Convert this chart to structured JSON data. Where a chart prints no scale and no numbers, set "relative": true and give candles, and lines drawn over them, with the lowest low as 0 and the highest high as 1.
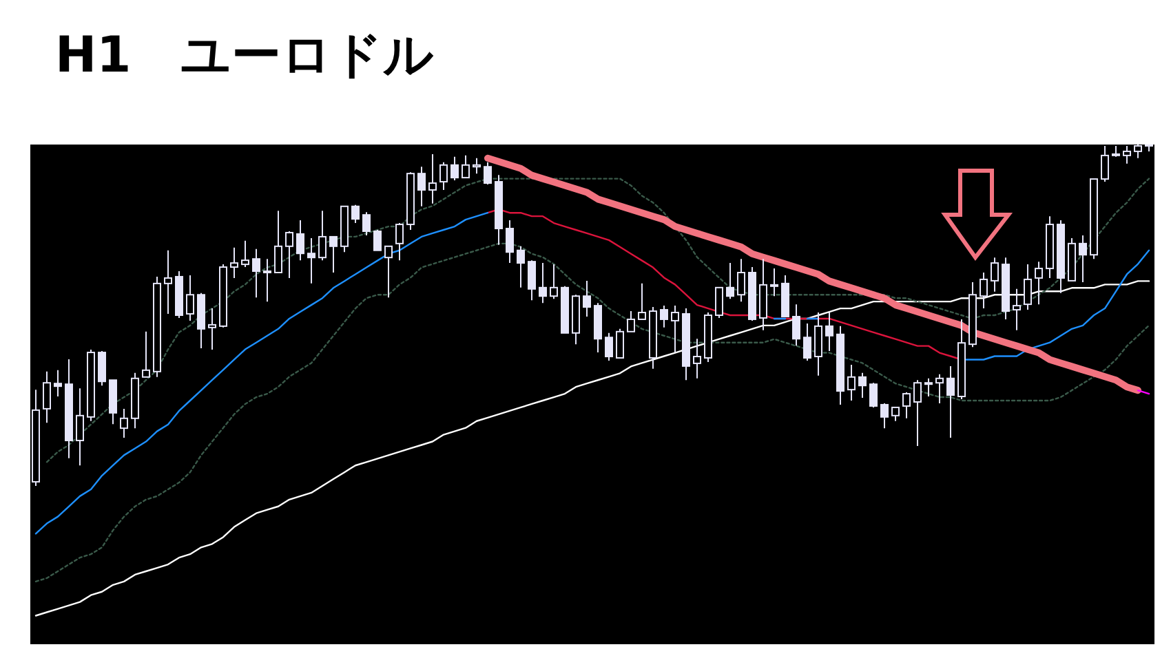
{
  "chart_data": {
    "type": "candlestick",
    "title": "H1　ユーロドル",
    "relative": true,
    "color": "#e6e6fa",
    "categories": [
      null,
      null,
      null,
      null,
      null,
      null,
      null,
      null,
      null,
      null,
      null,
      null,
      null,
      null,
      null,
      null,
      null,
      null,
      null,
      null,
      null,
      null,
      null,
      null,
      null,
      null,
      null,
      null,
      null,
      null,
      null,
      null,
      null,
      null,
      null,
      null,
      null,
      null,
      null,
      null,
      null,
      null,
      null,
      null,
      null,
      null,
      null,
      null,
      null,
      null,
      null,
      null,
      null,
      null,
      null,
      null,
      null,
      null,
      null,
      null,
      null,
      null,
      null,
      null,
      null,
      null,
      null,
      null,
      null,
      null,
      null,
      null,
      null,
      null,
      null,
      null,
      null,
      null,
      null,
      null,
      null,
      null,
      null,
      null,
      null,
      null,
      null,
      null,
      null,
      null,
      null,
      null,
      null,
      null,
      null,
      null,
      null,
      null,
      null,
      null,
      null,
      null
    ],
    "ohlc": [
      [
        0.012,
        0.282,
        0,
        0.222
      ],
      [
        0.226,
        0.335,
        0.185,
        0.302
      ],
      [
        0.3,
        0.339,
        0.262,
        0.292
      ],
      [
        0.298,
        0.371,
        0.081,
        0.133
      ],
      [
        0.133,
        0.286,
        0.06,
        0.206
      ],
      [
        0.202,
        0.399,
        0.19,
        0.391
      ],
      [
        0.391,
        0.395,
        0.294,
        0.306
      ],
      [
        0.31,
        0.31,
        0.181,
        0.214
      ],
      [
        0.169,
        0.226,
        0.141,
        0.198
      ],
      [
        0.198,
        0.331,
        0.169,
        0.315
      ],
      [
        0.319,
        0.452,
        0.319,
        0.339
      ],
      [
        0.335,
        0.613,
        0.319,
        0.593
      ],
      [
        0.593,
        0.69,
        0.504,
        0.609
      ],
      [
        0.613,
        0.629,
        0.492,
        0.5
      ],
      [
        0.504,
        0.617,
        0.484,
        0.56
      ],
      [
        0.56,
        0.565,
        0.403,
        0.46
      ],
      [
        0.464,
        0.52,
        0.399,
        0.472
      ],
      [
        0.468,
        0.649,
        0.464,
        0.641
      ],
      [
        0.641,
        0.698,
        0.609,
        0.653
      ],
      [
        0.649,
        0.718,
        0.641,
        0.661
      ],
      [
        0.665,
        0.694,
        0.552,
        0.629
      ],
      [
        0.629,
        0.665,
        0.54,
        0.625
      ],
      [
        0.625,
        0.806,
        0.625,
        0.702
      ],
      [
        0.702,
        0.746,
        0.609,
        0.742
      ],
      [
        0.738,
        0.778,
        0.661,
        0.681
      ],
      [
        0.681,
        0.726,
        0.593,
        0.669
      ],
      [
        0.669,
        0.806,
        0.661,
        0.73
      ],
      [
        0.73,
        0.73,
        0.625,
        0.702
      ],
      [
        0.702,
        0.819,
        0.685,
        0.819
      ],
      [
        0.819,
        0.823,
        0.77,
        0.782
      ],
      [
        0.794,
        0.802,
        0.734,
        0.746
      ],
      [
        0.746,
        0.75,
        0.69,
        0.69
      ],
      [
        0.669,
        0.702,
        0.552,
        0.702
      ],
      [
        0.71,
        0.77,
        0.661,
        0.766
      ],
      [
        0.766,
        0.919,
        0.75,
        0.915
      ],
      [
        0.915,
        0.935,
        0.819,
        0.867
      ],
      [
        0.867,
        0.972,
        0.827,
        0.887
      ],
      [
        0.891,
        0.948,
        0.867,
        0.94
      ],
      [
        0.94,
        0.964,
        0.895,
        0.903
      ],
      [
        0.903,
        0.968,
        0.903,
        0.94
      ],
      [
        0.935,
        0.96,
        0.915,
        0.94
      ],
      [
        0.935,
        0.948,
        0.883,
        0.887
      ],
      [
        0.891,
        0.911,
        0.706,
        0.754
      ],
      [
        0.754,
        0.778,
        0.653,
        0.685
      ],
      [
        0.69,
        0.702,
        0.581,
        0.653
      ],
      [
        0.657,
        0.661,
        0.544,
        0.577
      ],
      [
        0.581,
        0.653,
        0.536,
        0.556
      ],
      [
        0.556,
        0.649,
        0.548,
        0.581
      ],
      [
        0.581,
        0.585,
        0.448,
        0.448
      ],
      [
        0.448,
        0.56,
        0.415,
        0.556
      ],
      [
        0.556,
        0.601,
        0.496,
        0.524
      ],
      [
        0.528,
        0.536,
        0.391,
        0.431
      ],
      [
        0.435,
        0.448,
        0.367,
        0.379
      ],
      [
        0.375,
        0.46,
        0.375,
        0.452
      ],
      [
        0.452,
        0.512,
        0.452,
        0.488
      ],
      [
        0.488,
        0.593,
        0.488,
        0.508
      ],
      [
        0.375,
        0.524,
        0.343,
        0.512
      ],
      [
        0.516,
        0.528,
        0.464,
        0.488
      ],
      [
        0.484,
        0.528,
        0.391,
        0.508
      ],
      [
        0.504,
        0.52,
        0.31,
        0.351
      ],
      [
        0.359,
        0.431,
        0.315,
        0.379
      ],
      [
        0.375,
        0.508,
        0.363,
        0.5
      ],
      [
        0.5,
        0.581,
        0.492,
        0.581
      ],
      [
        0.581,
        0.653,
        0.548,
        0.556
      ],
      [
        0.56,
        0.665,
        0.54,
        0.625
      ],
      [
        0.625,
        0.641,
        0.484,
        0.488
      ],
      [
        0.492,
        0.665,
        0.456,
        0.589
      ],
      [
        0.589,
        0.637,
        0.556,
        0.587
      ],
      [
        0.593,
        0.617,
        0.496,
        0.496
      ],
      [
        0.496,
        0.532,
        0.411,
        0.431
      ],
      [
        0.435,
        0.476,
        0.367,
        0.375
      ],
      [
        0.379,
        0.508,
        0.323,
        0.468
      ],
      [
        0.468,
        0.508,
        0.395,
        0.44
      ],
      [
        0.444,
        0.468,
        0.238,
        0.278
      ],
      [
        0.282,
        0.355,
        0.25,
        0.319
      ],
      [
        0.319,
        0.331,
        0.258,
        0.294
      ],
      [
        0.298,
        0.302,
        0.23,
        0.234
      ],
      [
        0.238,
        0.242,
        0.169,
        0.202
      ],
      [
        0.206,
        0.23,
        0.19,
        0.23
      ],
      [
        0.234,
        0.274,
        0.198,
        0.27
      ],
      [
        0.246,
        0.31,
        0.117,
        0.302
      ],
      [
        0.298,
        0.315,
        0.262,
        0.302
      ],
      [
        0.302,
        0.327,
        0.242,
        0.315
      ],
      [
        0.315,
        0.351,
        0.141,
        0.266
      ],
      [
        0.262,
        0.488,
        0.254,
        0.419
      ],
      [
        0.415,
        0.597,
        0.407,
        0.56
      ],
      [
        0.556,
        0.625,
        0.52,
        0.605
      ],
      [
        0.601,
        0.669,
        0.569,
        0.653
      ],
      [
        0.649,
        0.669,
        0.488,
        0.512
      ],
      [
        0.516,
        0.577,
        0.456,
        0.528
      ],
      [
        0.532,
        0.649,
        0.516,
        0.605
      ],
      [
        0.609,
        0.657,
        0.532,
        0.637
      ],
      [
        0.637,
        0.79,
        0.609,
        0.766
      ],
      [
        0.766,
        0.778,
        0.565,
        0.609
      ],
      [
        0.601,
        0.726,
        0.601,
        0.71
      ],
      [
        0.71,
        0.734,
        0.597,
        0.677
      ],
      [
        0.677,
        0.899,
        0.665,
        0.899
      ],
      [
        0.899,
        0.996,
        0.891,
        0.968
      ],
      [
        0.972,
        0.996,
        0.964,
        0.968
      ],
      [
        0.968,
        0.996,
        0.944,
        0.98
      ],
      [
        0.98,
        1,
        0.96,
        0.996
      ],
      [
        0.996,
        1,
        0.98,
        1
      ]
    ],
    "series": [
      {
        "type": "line",
        "color": "#ffffff",
        "values": [
          -0.38,
          -0.37,
          -0.36,
          -0.35,
          -0.34,
          -0.32,
          -0.31,
          -0.29,
          -0.28,
          -0.26,
          -0.25,
          -0.24,
          -0.23,
          -0.21,
          -0.2,
          -0.18,
          -0.17,
          -0.15,
          -0.12,
          -0.1,
          -0.08,
          -0.07,
          -0.06,
          -0.04,
          -0.03,
          -0.02,
          0.0,
          0.02,
          0.04,
          0.06,
          0.07,
          0.08,
          0.09,
          0.1,
          0.11,
          0.12,
          0.13,
          0.15,
          0.16,
          0.17,
          0.19,
          0.2,
          0.21,
          0.22,
          0.23,
          0.24,
          0.25,
          0.26,
          0.27,
          0.29,
          0.3,
          0.31,
          0.32,
          0.33,
          0.35,
          0.36,
          0.37,
          0.38,
          0.39,
          0.4,
          0.41,
          0.42,
          0.43,
          0.44,
          0.45,
          0.46,
          0.47,
          0.47,
          0.48,
          0.49,
          0.49,
          0.5,
          0.51,
          0.52,
          0.52,
          0.53,
          0.54,
          0.54,
          0.54,
          0.54,
          0.54,
          0.54,
          0.54,
          0.54,
          0.55,
          0.55,
          0.55,
          0.56,
          0.56,
          0.56,
          0.56,
          0.57,
          0.57,
          0.57,
          0.58,
          0.58,
          0.58,
          0.59,
          0.59,
          0.59,
          0.6,
          0.6
        ]
      },
      {
        "type": "line",
        "color": "#1e90ff",
        "values": [
          -0.14,
          -0.11,
          -0.09,
          -0.06,
          -0.03,
          -0.01,
          0.03,
          0.06,
          0.09,
          0.11,
          0.13,
          0.16,
          0.18,
          0.22,
          0.25,
          0.28,
          0.31,
          0.34,
          0.37,
          0.4,
          0.42,
          0.44,
          0.46,
          0.49,
          0.51,
          0.53,
          0.55,
          0.58,
          0.6,
          0.62,
          0.64,
          0.66,
          0.68,
          0.69,
          0.71,
          0.73,
          0.74,
          0.75,
          0.76,
          0.78,
          0.79,
          0.8,
          null,
          null,
          null,
          null,
          null,
          null,
          null,
          null,
          null,
          null,
          null,
          null,
          null,
          null,
          null,
          null,
          null,
          null,
          null,
          null,
          null,
          null,
          null,
          null,
          null,
          0.49,
          0.49,
          null,
          0.49,
          0.49,
          null,
          null,
          null,
          null,
          null,
          null,
          null,
          null,
          null,
          null,
          null,
          null,
          0.37,
          0.37,
          0.37,
          0.38,
          0.38,
          0.38,
          0.4,
          0.41,
          0.42,
          0.44,
          0.46,
          0.47,
          0.5,
          0.52,
          0.57,
          0.62,
          0.65,
          0.69
        ]
      },
      {
        "type": "line",
        "color": "#dc143c",
        "values": [
          null,
          null,
          null,
          null,
          null,
          null,
          null,
          null,
          null,
          null,
          null,
          null,
          null,
          null,
          null,
          null,
          null,
          null,
          null,
          null,
          null,
          null,
          null,
          null,
          null,
          null,
          null,
          null,
          null,
          null,
          null,
          null,
          null,
          null,
          null,
          null,
          null,
          null,
          null,
          null,
          null,
          0.8,
          0.81,
          0.8,
          0.8,
          0.79,
          0.79,
          0.77,
          0.76,
          0.75,
          0.74,
          0.73,
          0.72,
          0.7,
          0.68,
          0.66,
          0.64,
          0.61,
          0.59,
          0.56,
          0.53,
          0.52,
          0.51,
          0.5,
          0.5,
          0.5,
          0.5,
          0.49,
          0.49,
          0.49,
          0.49,
          0.49,
          0.49,
          0.48,
          0.47,
          0.46,
          0.45,
          0.44,
          0.43,
          0.42,
          0.41,
          0.41,
          0.39,
          0.38,
          0.37,
          null,
          null,
          null,
          null,
          null,
          null,
          null,
          null,
          null,
          null,
          null,
          null,
          null,
          null,
          null,
          null,
          null
        ]
      },
      {
        "type": "line",
        "color": "#3a5a4a",
        "line_style": "dashed",
        "values": [
          null,
          0.07,
          0.1,
          0.12,
          0.15,
          0.18,
          0.21,
          0.24,
          0.26,
          0.28,
          0.31,
          0.34,
          0.4,
          0.45,
          0.47,
          0.5,
          0.52,
          0.54,
          0.57,
          0.59,
          0.62,
          0.64,
          0.65,
          0.67,
          0.69,
          0.7,
          0.71,
          0.72,
          0.73,
          0.73,
          0.74,
          0.75,
          0.76,
          0.76,
          0.79,
          0.81,
          0.82,
          0.84,
          0.86,
          0.88,
          0.89,
          0.9,
          0.9,
          0.9,
          0.9,
          0.9,
          0.9,
          0.9,
          0.9,
          0.9,
          0.9,
          0.9,
          0.9,
          0.9,
          0.88,
          0.85,
          0.83,
          0.8,
          0.76,
          0.72,
          0.67,
          0.64,
          0.61,
          0.58,
          0.57,
          0.56,
          0.56,
          0.56,
          0.56,
          0.56,
          0.56,
          0.56,
          0.56,
          0.56,
          0.56,
          0.56,
          0.56,
          0.56,
          0.55,
          0.55,
          0.54,
          0.53,
          0.52,
          0.51,
          0.5,
          0.49,
          0.5,
          0.5,
          0.51,
          0.52,
          0.54,
          0.56,
          0.58,
          0.61,
          0.64,
          0.68,
          0.72,
          0.76,
          0.8,
          0.83,
          0.87,
          0.9
        ]
      },
      {
        "type": "line",
        "color": "#3a5a4a",
        "line_style": "dashed",
        "values": [
          -0.28,
          -0.27,
          -0.25,
          -0.23,
          -0.21,
          -0.2,
          -0.18,
          -0.13,
          -0.09,
          -0.06,
          -0.04,
          -0.03,
          -0.01,
          0.01,
          0.04,
          0.09,
          0.13,
          0.17,
          0.21,
          0.24,
          0.26,
          0.27,
          0.29,
          0.32,
          0.34,
          0.36,
          0.4,
          0.44,
          0.48,
          0.52,
          0.55,
          0.56,
          0.56,
          0.59,
          0.61,
          0.64,
          0.65,
          0.66,
          0.67,
          0.68,
          0.69,
          0.7,
          0.71,
          0.71,
          0.7,
          0.68,
          0.67,
          0.65,
          0.62,
          0.59,
          0.57,
          0.55,
          0.52,
          0.5,
          0.48,
          0.46,
          0.45,
          0.44,
          0.43,
          0.42,
          0.42,
          0.42,
          0.42,
          0.42,
          0.42,
          0.42,
          0.42,
          0.43,
          0.42,
          0.41,
          0.4,
          0.39,
          0.39,
          0.38,
          0.37,
          0.36,
          0.34,
          0.32,
          0.3,
          0.29,
          0.28,
          0.27,
          0.26,
          0.26,
          0.25,
          0.25,
          0.25,
          0.25,
          0.25,
          0.25,
          0.25,
          0.25,
          0.25,
          0.26,
          0.28,
          0.3,
          0.32,
          0.34,
          0.37,
          0.41,
          0.44,
          0.47
        ]
      },
      {
        "type": "line",
        "color": "#f27380",
        "values": [
          null,
          null,
          null,
          null,
          null,
          null,
          null,
          null,
          null,
          null,
          null,
          null,
          null,
          null,
          null,
          null,
          null,
          null,
          null,
          null,
          null,
          null,
          null,
          null,
          null,
          null,
          null,
          null,
          null,
          null,
          null,
          null,
          null,
          null,
          null,
          null,
          null,
          null,
          null,
          null,
          null,
          0.96,
          0.95,
          0.94,
          0.93,
          0.91,
          0.9,
          0.89,
          0.88,
          0.87,
          0.86,
          0.84,
          0.83,
          0.82,
          0.81,
          0.8,
          0.79,
          0.78,
          0.76,
          0.75,
          0.74,
          0.73,
          0.72,
          0.71,
          0.7,
          0.68,
          0.67,
          0.66,
          0.65,
          0.64,
          0.63,
          0.62,
          0.6,
          0.59,
          0.58,
          0.57,
          0.56,
          0.55,
          0.53,
          0.52,
          0.51,
          0.5,
          0.49,
          0.48,
          0.47,
          0.45,
          0.44,
          0.43,
          0.42,
          0.41,
          0.4,
          0.39,
          0.37,
          0.36,
          0.35,
          0.34,
          0.33,
          0.32,
          0.31,
          0.29,
          0.28,
          null
        ]
      },
      {
        "type": "line",
        "color": "#ff00ff",
        "values": [
          null,
          null,
          null,
          null,
          null,
          null,
          null,
          null,
          null,
          null,
          null,
          null,
          null,
          null,
          null,
          null,
          null,
          null,
          null,
          null,
          null,
          null,
          null,
          null,
          null,
          null,
          null,
          null,
          null,
          null,
          null,
          null,
          null,
          null,
          null,
          null,
          null,
          null,
          null,
          null,
          null,
          null,
          null,
          null,
          null,
          null,
          null,
          null,
          null,
          null,
          null,
          null,
          null,
          null,
          null,
          null,
          null,
          null,
          null,
          null,
          null,
          null,
          null,
          null,
          null,
          null,
          null,
          null,
          null,
          null,
          null,
          null,
          null,
          null,
          null,
          null,
          null,
          null,
          null,
          null,
          null,
          null,
          null,
          null,
          null,
          null,
          null,
          null,
          null,
          null,
          null,
          null,
          null,
          null,
          null,
          null,
          null,
          null,
          null,
          null,
          0.28,
          0.27
        ]
      }
    ]
  }
}
